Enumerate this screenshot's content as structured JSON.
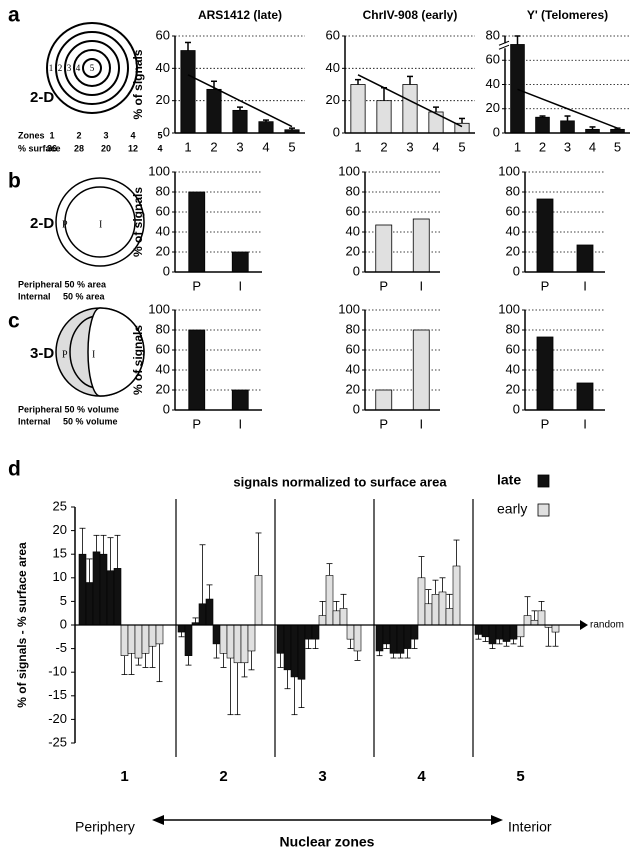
{
  "panels": [
    "a",
    "b",
    "c",
    "d"
  ],
  "diagrams": {
    "a": {
      "dim": "2-D",
      "zones_label": "Zones",
      "zones": [
        1,
        2,
        3,
        4,
        5
      ],
      "surface_label": "% surface",
      "surface": [
        36,
        28,
        20,
        12,
        4
      ]
    },
    "b": {
      "dim": "2-D",
      "p": "P",
      "i": "I",
      "line1": "Peripheral 50 % area",
      "line2": "Internal     50 % area"
    },
    "c": {
      "dim": "3-D",
      "p": "P",
      "i": "I",
      "line1": "Peripheral 50 % volume",
      "line2": "Internal     50 % volume"
    }
  },
  "chart_data": [
    {
      "type": "bar",
      "title": "ARS1412 (late)",
      "y_label": "% of signals",
      "categories": [
        "1",
        "2",
        "3",
        "4",
        "5"
      ],
      "values": [
        51,
        27,
        14,
        7,
        2
      ],
      "errors": [
        5,
        5,
        2,
        1,
        1
      ],
      "color": "#111111",
      "ylim": [
        0,
        60
      ],
      "yticks": [
        0,
        20,
        40,
        60
      ],
      "grid": true,
      "trend_line": true
    },
    {
      "type": "bar",
      "title": "ChrIV-908 (early)",
      "categories": [
        "1",
        "2",
        "3",
        "4",
        "5"
      ],
      "values": [
        30,
        20,
        30,
        13,
        6
      ],
      "errors": [
        3,
        8,
        5,
        3,
        3
      ],
      "color": "#e0e0e0",
      "ylim": [
        0,
        60
      ],
      "yticks": [
        0,
        20,
        40,
        60
      ],
      "grid": true,
      "trend_line": true
    },
    {
      "type": "bar",
      "title": "Y' (Telomeres)",
      "categories": [
        "1",
        "2",
        "3",
        "4",
        "5"
      ],
      "values": [
        73,
        13,
        10,
        3,
        3
      ],
      "errors": [
        7,
        1,
        4,
        2,
        1
      ],
      "color": "#111111",
      "ylim": [
        0,
        80
      ],
      "yticks": [
        0,
        20,
        40,
        60,
        80
      ],
      "grid": true,
      "trend_line": true,
      "axis_break": true
    },
    {
      "type": "bar",
      "y_label": "% of signals",
      "categories": [
        "P",
        "I"
      ],
      "values": [
        80,
        20
      ],
      "color": "#111111",
      "ylim": [
        0,
        100
      ],
      "yticks": [
        0,
        20,
        40,
        60,
        80,
        100
      ],
      "grid": true
    },
    {
      "type": "bar",
      "categories": [
        "P",
        "I"
      ],
      "values": [
        47,
        53
      ],
      "color": "#e0e0e0",
      "ylim": [
        0,
        100
      ],
      "yticks": [
        0,
        20,
        40,
        60,
        80,
        100
      ],
      "grid": true
    },
    {
      "type": "bar",
      "categories": [
        "P",
        "I"
      ],
      "values": [
        73,
        27
      ],
      "color": "#111111",
      "ylim": [
        0,
        100
      ],
      "yticks": [
        0,
        20,
        40,
        60,
        80,
        100
      ],
      "grid": true
    },
    {
      "type": "bar",
      "y_label": "% of signals",
      "categories": [
        "P",
        "I"
      ],
      "values": [
        80,
        20
      ],
      "color": "#111111",
      "ylim": [
        0,
        100
      ],
      "yticks": [
        0,
        20,
        40,
        60,
        80,
        100
      ],
      "grid": true
    },
    {
      "type": "bar",
      "categories": [
        "P",
        "I"
      ],
      "values": [
        20,
        80
      ],
      "color": "#e0e0e0",
      "ylim": [
        0,
        100
      ],
      "yticks": [
        0,
        20,
        40,
        60,
        80,
        100
      ],
      "grid": true
    },
    {
      "type": "bar",
      "categories": [
        "P",
        "I"
      ],
      "values": [
        73,
        27
      ],
      "color": "#111111",
      "ylim": [
        0,
        100
      ],
      "yticks": [
        0,
        20,
        40,
        60,
        80,
        100
      ],
      "grid": true
    },
    {
      "type": "grouped_bar",
      "title": "signals normalized to surface area",
      "y_label": "% of signals - % surface area",
      "x_label": "Nuclear zones",
      "left_label": "Periphery",
      "right_label": "Interior",
      "zero_label": "random",
      "categories": [
        "1",
        "2",
        "3",
        "4",
        "5"
      ],
      "series": [
        {
          "name": "late",
          "color": "#111111",
          "values": [
            [
              15,
              9,
              15.5,
              15,
              11.5,
              12
            ],
            [
              -1.5,
              -6.5,
              0.5,
              4.5,
              5.5,
              -4
            ],
            [
              -6,
              -9.5,
              -11,
              -11.5,
              -3,
              -3
            ],
            [
              -5.5,
              -4,
              -6,
              -6,
              -5,
              -3
            ],
            [
              -2,
              -2.5,
              -4,
              -3,
              -3.5,
              -3
            ]
          ],
          "errors": [
            [
              5.5,
              5,
              3.5,
              4,
              7,
              7
            ],
            [
              1,
              2,
              1,
              12.5,
              3,
              3
            ],
            [
              3,
              4,
              8,
              6,
              2,
              2
            ],
            [
              1,
              1,
              1,
              1,
              2,
              2
            ],
            [
              1,
              1,
              1,
              1,
              1,
              1
            ]
          ]
        },
        {
          "name": "early",
          "color": "#e0e0e0",
          "values": [
            [
              -6.5,
              -6,
              -7,
              -6,
              -4.5,
              -4
            ],
            [
              -6,
              -7,
              -8,
              -8,
              -5.5,
              10.5
            ],
            [
              2,
              10.5,
              3,
              3.5,
              -3,
              -5.5
            ],
            [
              10,
              4.5,
              6.5,
              7,
              3.5,
              12.5
            ],
            [
              -2.5,
              2,
              1,
              3,
              -0.5,
              -1.5
            ]
          ],
          "errors": [
            [
              4,
              4.5,
              1.5,
              3,
              4.5,
              8
            ],
            [
              3,
              12,
              11,
              3,
              4,
              9
            ],
            [
              3,
              2.5,
              2,
              3,
              2,
              2
            ],
            [
              4.5,
              3,
              3,
              3,
              3,
              5.5
            ],
            [
              2,
              4,
              2,
              2,
              4,
              3
            ]
          ]
        }
      ],
      "ylim": [
        -25,
        25
      ],
      "yticks": [
        -25,
        -20,
        -15,
        -10,
        -5,
        0,
        5,
        10,
        15,
        20,
        25
      ],
      "legend": "top-right"
    }
  ]
}
